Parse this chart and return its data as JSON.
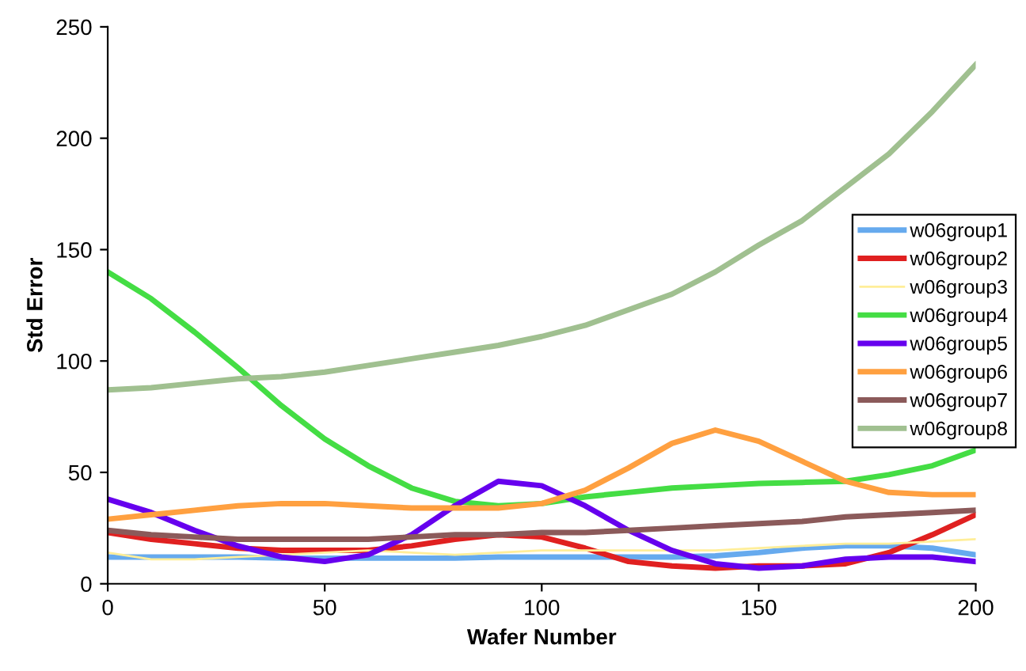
{
  "chart_data": {
    "type": "line",
    "xlabel": "Wafer Number",
    "ylabel": "Std Error",
    "x": [
      0,
      10,
      20,
      30,
      40,
      50,
      60,
      70,
      80,
      90,
      100,
      110,
      120,
      130,
      140,
      150,
      160,
      170,
      180,
      190,
      200
    ],
    "xlim": [
      0,
      200
    ],
    "xticks": [
      0,
      50,
      100,
      150,
      200
    ],
    "ylim": [
      0,
      250
    ],
    "yticks": [
      0,
      50,
      100,
      150,
      200,
      250
    ],
    "grid": false,
    "legend": "right",
    "marker": "none",
    "line_style": "solid",
    "series": [
      {
        "name": "w06group1",
        "color": "#66aaee",
        "values": [
          12,
          12,
          12,
          12,
          11.5,
          11.5,
          11.5,
          11.5,
          11.5,
          12,
          12,
          12,
          12,
          12,
          12.5,
          14,
          16,
          17,
          17,
          16,
          13
        ]
      },
      {
        "name": "w06group2",
        "color": "#e02020",
        "values": [
          23,
          20,
          18,
          16,
          15,
          15,
          15,
          17,
          20,
          22,
          21,
          16,
          10,
          8,
          7,
          8,
          8,
          9,
          14,
          22,
          31
        ]
      },
      {
        "name": "w06group3",
        "color": "#ffee99",
        "values": [
          14,
          11,
          11,
          12,
          13,
          14,
          15,
          14,
          13,
          14,
          15,
          15,
          15,
          15,
          15,
          16,
          17,
          18,
          18,
          19,
          20
        ]
      },
      {
        "name": "w06group4",
        "color": "#44dd44",
        "values": [
          140,
          128,
          113,
          97,
          80,
          65,
          53,
          43,
          37,
          35,
          36,
          39,
          41,
          43,
          44,
          45,
          45.5,
          46,
          49,
          53,
          60
        ]
      },
      {
        "name": "w06group5",
        "color": "#6600ee",
        "values": [
          38,
          32,
          24,
          17,
          12,
          10,
          13,
          22,
          35,
          46,
          44,
          35,
          24,
          15,
          9,
          7,
          8,
          11,
          12,
          12,
          10
        ]
      },
      {
        "name": "w06group6",
        "color": "#ffa040",
        "values": [
          29,
          31,
          33,
          35,
          36,
          36,
          35,
          34,
          34,
          34,
          36,
          42,
          52,
          63,
          69,
          64,
          55,
          46,
          41,
          40,
          40
        ]
      },
      {
        "name": "w06group7",
        "color": "#8b5a5a",
        "values": [
          24,
          22,
          21,
          20,
          20,
          20,
          20,
          21,
          22,
          22,
          23,
          23,
          24,
          25,
          26,
          27,
          28,
          30,
          31,
          32,
          33
        ]
      },
      {
        "name": "w06group8",
        "color": "#a0c090",
        "values": [
          87,
          88,
          90,
          92,
          93,
          95,
          98,
          101,
          104,
          107,
          111,
          116,
          123,
          130,
          140,
          152,
          163,
          178,
          193,
          212,
          233
        ]
      }
    ]
  }
}
